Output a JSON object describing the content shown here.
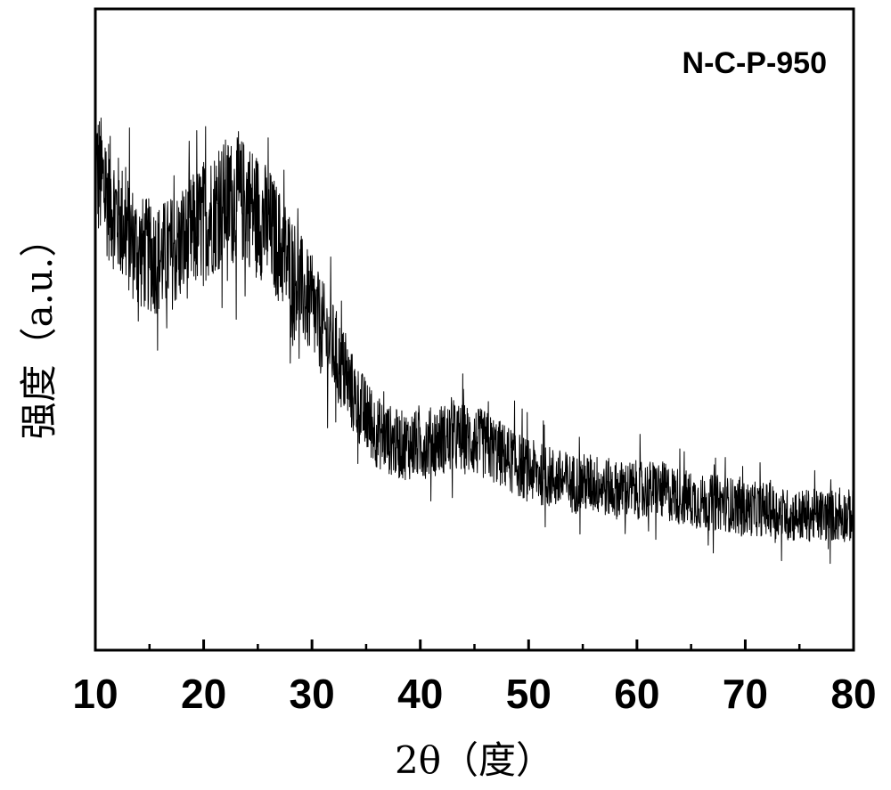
{
  "chart_data": {
    "type": "line",
    "title": "",
    "annotation": "N-C-P-950",
    "xlabel": "2θ（度）",
    "ylabel": "强度（a.u.）",
    "xlim": [
      10,
      80
    ],
    "ylim": [
      0,
      100
    ],
    "x_ticks": [
      10,
      20,
      30,
      40,
      50,
      60,
      70,
      80
    ],
    "x_tick_labels": [
      "10",
      "20",
      "30",
      "40",
      "50",
      "60",
      "70",
      "80"
    ],
    "y_tick_labels": [],
    "grid": false,
    "line_color": "#000000",
    "series": [
      {
        "x": [
          10,
          12,
          14,
          16,
          18,
          20,
          22,
          24,
          26,
          28,
          30,
          32,
          34,
          36,
          38,
          40,
          42,
          44,
          46,
          48,
          50,
          52,
          54,
          56,
          58,
          60,
          62,
          64,
          66,
          68,
          70,
          72,
          74,
          76,
          78,
          80
        ],
        "y": [
          75,
          68,
          62,
          61,
          63,
          67,
          70,
          70,
          66,
          60,
          53,
          47,
          39,
          34,
          32,
          32,
          33,
          33,
          32,
          30,
          28,
          27,
          26,
          26,
          25,
          25,
          25,
          24,
          23,
          23,
          22,
          22,
          21,
          21,
          21,
          21
        ]
      }
    ]
  }
}
